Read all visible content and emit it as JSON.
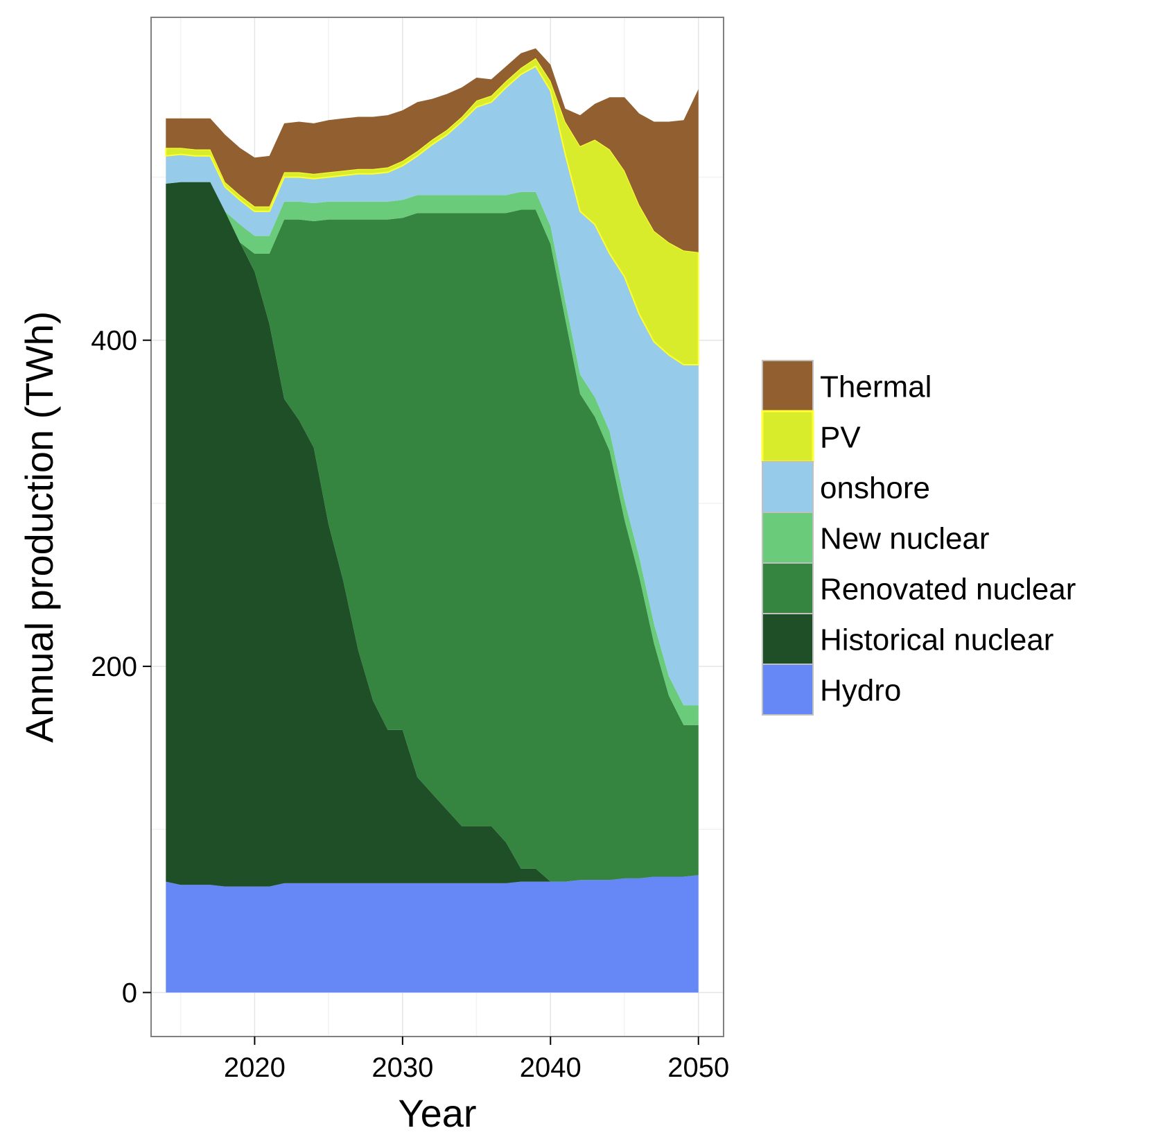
{
  "chart_data": {
    "type": "area",
    "stacked": true,
    "xlabel": "Year",
    "ylabel": "Annual production (TWh)",
    "xlim": [
      2013,
      2051.7
    ],
    "ylim": [
      -27,
      598
    ],
    "x_ticks": [
      "2020",
      "2030",
      "2040",
      "2050"
    ],
    "y_ticks": [
      "0",
      "200",
      "400"
    ],
    "grid": true,
    "legend_position": "right",
    "x": [
      2014,
      2015,
      2016,
      2017,
      2018,
      2019,
      2020,
      2021,
      2022,
      2023,
      2024,
      2025,
      2026,
      2027,
      2028,
      2029,
      2030,
      2031,
      2032,
      2033,
      2034,
      2035,
      2036,
      2037,
      2038,
      2039,
      2040,
      2041,
      2042,
      2043,
      2044,
      2045,
      2046,
      2047,
      2048,
      2049,
      2050
    ],
    "series": [
      {
        "name": "Hydro",
        "color": "#6688f7",
        "values": [
          68,
          66,
          66,
          66,
          65,
          65,
          65,
          65,
          67,
          67,
          67,
          67,
          67,
          67,
          67,
          67,
          67,
          67,
          67,
          67,
          67,
          67,
          67,
          67,
          68,
          68,
          68,
          68,
          69,
          69,
          69,
          70,
          70,
          71,
          71,
          71,
          72
        ]
      },
      {
        "name": "Historical nuclear",
        "color": "#1f4f26",
        "values": [
          428,
          431,
          431,
          431,
          414,
          395,
          377,
          345,
          297,
          284,
          267,
          220,
          185,
          143,
          112,
          94,
          94,
          65,
          55,
          45,
          35,
          35,
          35,
          25,
          8,
          8,
          0,
          0,
          0,
          0,
          0,
          0,
          0,
          0,
          0,
          0,
          0
        ]
      },
      {
        "name": "Renovated nuclear",
        "color": "#358440",
        "values": [
          0,
          0,
          0,
          0,
          0,
          0,
          11,
          43,
          110,
          123,
          139,
          187,
          222,
          264,
          295,
          313,
          314,
          346,
          356,
          366,
          376,
          376,
          376,
          386,
          404,
          404,
          391,
          345,
          298,
          284,
          263,
          220,
          185,
          143,
          111,
          93,
          92
        ]
      },
      {
        "name": "New nuclear",
        "color": "#6acc7a",
        "values": [
          0,
          0,
          0,
          0,
          0,
          11,
          11,
          11,
          11,
          11,
          11,
          11,
          11,
          11,
          11,
          11,
          11,
          11,
          11,
          11,
          11,
          11,
          11,
          11,
          11,
          11,
          11,
          11,
          12,
          12,
          12,
          12,
          12,
          12,
          12,
          12,
          12
        ]
      },
      {
        "name": "onshore",
        "color": "#96cce9",
        "values": [
          17,
          17,
          16,
          16,
          15,
          15,
          15,
          15,
          15,
          15,
          15,
          15,
          16,
          17,
          17,
          18,
          21,
          24,
          31,
          37,
          45,
          54,
          57,
          66,
          72,
          77,
          83,
          90,
          100,
          106,
          109,
          137,
          149,
          173,
          197,
          209,
          209
        ]
      },
      {
        "name": "PV",
        "color": "#d8ec2b",
        "values": [
          5,
          4,
          4,
          4,
          3,
          3,
          3,
          3,
          3,
          3,
          3,
          3,
          3,
          3,
          3,
          3,
          3,
          3,
          3,
          3,
          3,
          4,
          4,
          4,
          4,
          5,
          6,
          20,
          40,
          52,
          64,
          65,
          67,
          68,
          69,
          70,
          69
        ]
      },
      {
        "name": "Thermal",
        "color": "#925f31",
        "values": [
          18,
          18,
          19,
          19,
          29,
          29,
          30,
          31,
          30,
          31,
          31,
          32,
          32,
          32,
          32,
          32,
          31,
          30,
          25,
          22,
          18,
          14,
          10,
          9,
          9,
          6,
          10,
          8,
          19,
          22,
          32,
          45,
          56,
          67,
          74,
          80,
          100
        ]
      }
    ]
  }
}
